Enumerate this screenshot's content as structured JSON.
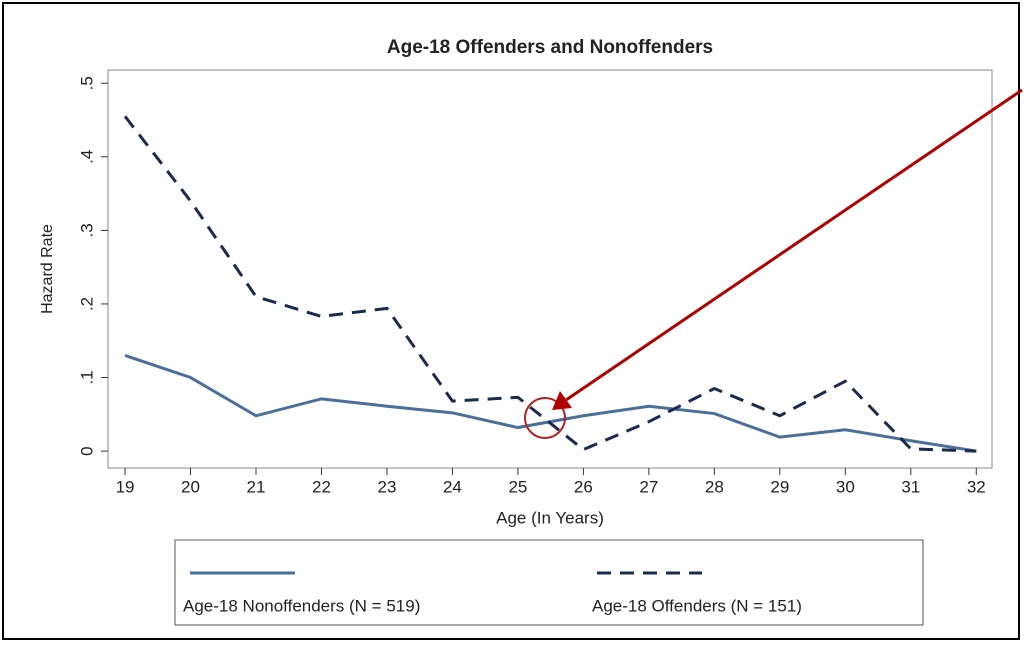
{
  "chart_data": {
    "type": "line",
    "title": "Age-18 Offenders and Nonoffenders",
    "xlabel": "Age (In Years)",
    "ylabel": "Hazard Rate",
    "x": [
      19,
      20,
      21,
      22,
      23,
      24,
      25,
      26,
      27,
      28,
      29,
      30,
      31,
      32
    ],
    "series": [
      {
        "name": "Age-18 Nonoffenders (N = 519)",
        "color": "#4a6f9a",
        "dash": "solid",
        "values": [
          0.13,
          0.1,
          0.048,
          0.071,
          0.061,
          0.052,
          0.032,
          0.048,
          0.061,
          0.051,
          0.019,
          0.029,
          0.014,
          0
        ]
      },
      {
        "name": "Age-18 Offenders (N = 151)",
        "color": "#1b2a4e",
        "dash": "dashed",
        "values": [
          0.455,
          0.34,
          0.21,
          0.183,
          0.194,
          0.068,
          0.073,
          0.002,
          0.04,
          0.085,
          0.048,
          0.095,
          0.003,
          0
        ]
      }
    ],
    "xlim": [
      18.74,
      32.24
    ],
    "xticks": [
      19,
      20,
      21,
      22,
      23,
      24,
      25,
      26,
      27,
      28,
      29,
      30,
      31,
      32
    ],
    "ylim": [
      -0.023,
      0.518
    ],
    "yticks": [
      0,
      {
        "value": 0.1,
        "label": ".1"
      },
      {
        "value": 0.2,
        "label": ".2"
      },
      {
        "value": 0.3,
        "label": ".3"
      },
      {
        "value": 0.4,
        "label": ".4"
      },
      {
        "value": 0.5,
        "label": ".5"
      }
    ],
    "grid": false,
    "legend": "bottom"
  }
}
